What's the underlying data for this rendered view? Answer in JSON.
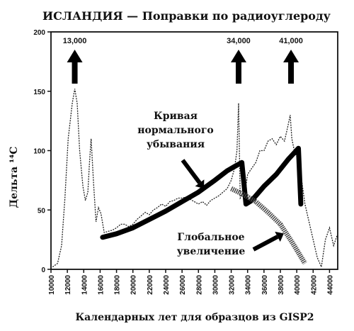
{
  "chart_data": {
    "type": "line",
    "title": "ИСЛАНДИЯ — Поправки по радиоуглероду",
    "xlabel": "Календарных лет для образцов из GISP2",
    "ylabel": "Дельта ¹⁴C",
    "xlim": [
      10000,
      45000
    ],
    "ylim": [
      0,
      200
    ],
    "x_ticks": [
      "10000",
      "12000",
      "14000",
      "16000",
      "18000",
      "20000",
      "22000",
      "24000",
      "26000",
      "28000",
      "30000",
      "32000",
      "34000",
      "36000",
      "38000",
      "40000",
      "42000",
      "44000"
    ],
    "y_ticks": [
      0,
      50,
      100,
      150,
      200
    ],
    "grid": false,
    "series": [
      {
        "role": "measured",
        "x": [
          10200,
          10800,
          11300,
          11700,
          12100,
          12600,
          12900,
          13200,
          13500,
          13900,
          14200,
          14500,
          14700,
          14900,
          15200,
          15500,
          15800,
          16100,
          16500,
          17000,
          17500,
          18000,
          18500,
          19000,
          19500,
          20000,
          20500,
          21000,
          21500,
          22000,
          22500,
          23000,
          23500,
          24000,
          24500,
          25000,
          25500,
          26000,
          26500,
          27000,
          27500,
          28000,
          28500,
          29000,
          29500,
          30000,
          30500,
          31000,
          31500,
          32000,
          32400,
          32700,
          32900,
          33100,
          33300,
          33700,
          34000,
          34500,
          35000,
          35500,
          36000,
          36500,
          37000,
          37500,
          38000,
          38500,
          38900,
          39200,
          39400,
          39700,
          40000,
          40500,
          41000,
          41500,
          42000,
          42500,
          43000,
          43500,
          44000,
          44500,
          45000
        ],
        "y": [
          2,
          5,
          20,
          60,
          110,
          140,
          152,
          140,
          100,
          70,
          58,
          65,
          90,
          110,
          72,
          40,
          52,
          47,
          31,
          32,
          33,
          35,
          38,
          38,
          36,
          38,
          42,
          45,
          48,
          46,
          50,
          52,
          55,
          53,
          57,
          58,
          60,
          60,
          61,
          59,
          57,
          55,
          57,
          54,
          58,
          60,
          62,
          65,
          68,
          75,
          85,
          100,
          140,
          60,
          62,
          65,
          80,
          85,
          90,
          100,
          100,
          108,
          110,
          105,
          112,
          108,
          120,
          130,
          110,
          100,
          95,
          80,
          55,
          40,
          25,
          10,
          2,
          25,
          35,
          20,
          30
        ]
      },
      {
        "name": "Кривая нормального убывания",
        "role": "normal-decay",
        "x": [
          16300,
          18000,
          20000,
          22000,
          24000,
          26000,
          28000,
          30000,
          31500,
          32500,
          33300,
          33800,
          34500,
          36000,
          37500,
          39000,
          40200,
          40500
        ],
        "y": [
          27,
          30,
          35,
          42,
          49,
          57,
          65,
          75,
          83,
          87,
          90,
          55,
          58,
          70,
          80,
          93,
          102,
          55
        ]
      },
      {
        "name": "Глобальное увеличение",
        "role": "global-increase",
        "x": [
          32000,
          33500,
          35000,
          36500,
          38000,
          39500,
          41000
        ],
        "y": [
          68,
          63,
          57,
          48,
          38,
          22,
          5
        ]
      }
    ],
    "arrows": [
      {
        "label": "13,000",
        "x": 12900
      },
      {
        "label": "34,000",
        "x": 32900
      },
      {
        "label": "41,000",
        "x": 39300
      }
    ],
    "annotations": [
      {
        "lines": [
          "Кривая",
          "нормального",
          "убывания"
        ]
      },
      {
        "lines": [
          "Глобальное",
          "увеличение"
        ]
      }
    ]
  }
}
